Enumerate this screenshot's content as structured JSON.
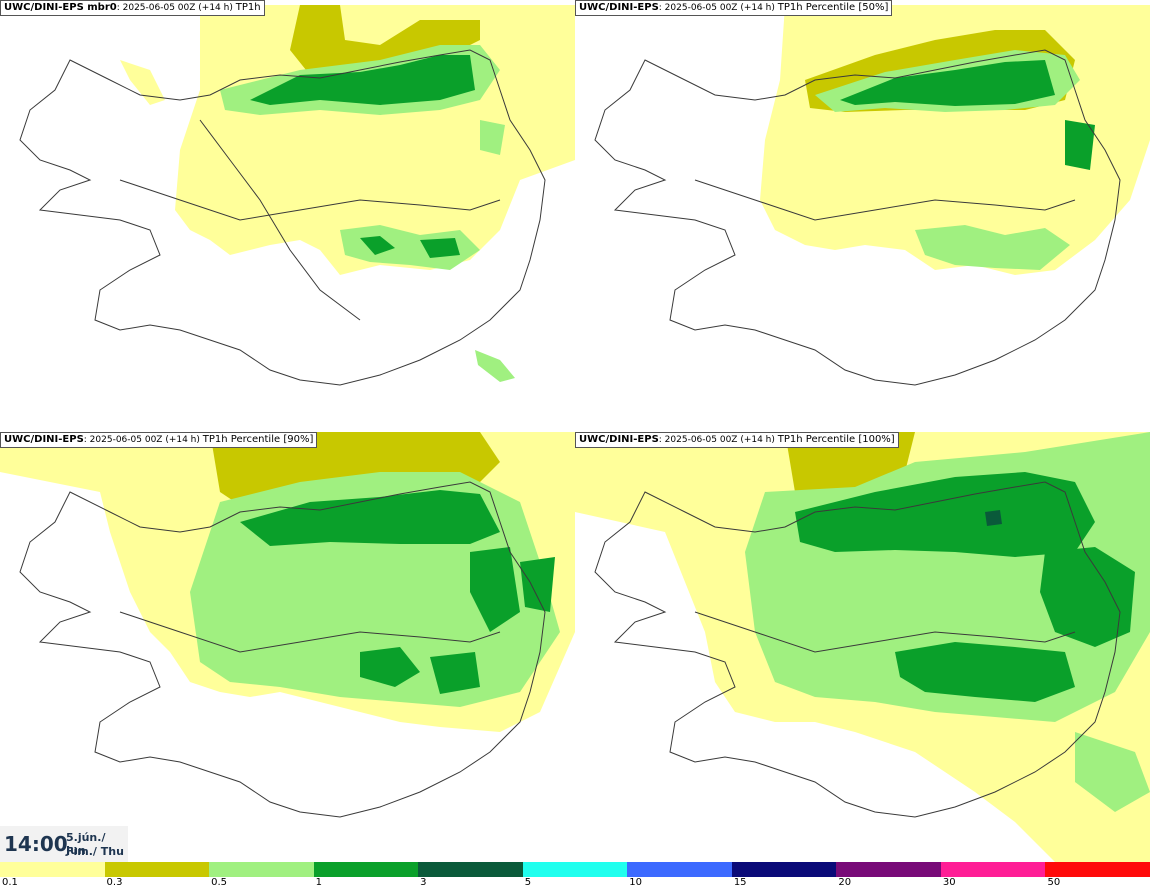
{
  "panels": [
    {
      "model": "UWC/DINI-EPS mbr0",
      "run": "2025-06-05 00Z (+14 h)",
      "variable": "TP1h"
    },
    {
      "model": "UWC/DINI-EPS",
      "run": "2025-06-05 00Z (+14 h)",
      "variable": "TP1h Percentile [50%]"
    },
    {
      "model": "UWC/DINI-EPS",
      "run": "2025-06-05 00Z (+14 h)",
      "variable": "TP1h Percentile [90%]"
    },
    {
      "model": "UWC/DINI-EPS",
      "run": "2025-06-05 00Z (+14 h)",
      "variable": "TP1h Percentile [100%]"
    }
  ],
  "time": {
    "hour": "14:00",
    "date": "5.jún./ Jun",
    "weekday": "Fim./ Thu"
  },
  "legend": {
    "labels": [
      "0.1",
      "0.3",
      "0.5",
      "1",
      "3",
      "5",
      "10",
      "15",
      "20",
      "30",
      "50"
    ],
    "colors": [
      "#ffff9a",
      "#c8c800",
      "#a0f080",
      "#0aa02a",
      "#0a5a3a",
      "#20ffee",
      "#3c6aff",
      "#0a0a78",
      "#780a78",
      "#ff1e96",
      "#ff0a0a"
    ]
  },
  "map_colors": {
    "outline": "#3a3a3a",
    "light": "#ffff9a",
    "olive": "#c8c800",
    "pale_green": "#a0f080",
    "green": "#0aa02a",
    "dark_green": "#0a5a3a"
  }
}
